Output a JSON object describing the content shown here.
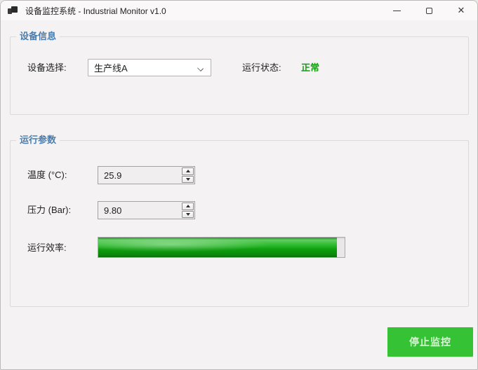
{
  "window": {
    "title": "设备监控系统 - Industrial Monitor v1.0",
    "icons": {
      "app": "app-icon",
      "minimize": "minimize-icon",
      "maximize": "maximize-icon",
      "close": "close-icon",
      "combo_chevron": "chevron-down-icon",
      "spin_up": "arrow-up-icon",
      "spin_down": "arrow-down-icon"
    },
    "close_glyph": "✕"
  },
  "groups": {
    "device_info": {
      "title": "设备信息",
      "device_select_label": "设备选择:",
      "device_selected": "生产线A",
      "status_label": "运行状态:",
      "status_value": "正常"
    },
    "run_params": {
      "title": "运行参数",
      "temperature_label": "温度 (°C):",
      "temperature_value": "25.9",
      "pressure_label": "压力 (Bar):",
      "pressure_value": "9.80",
      "efficiency_label": "运行效率:",
      "efficiency_percent": 97
    }
  },
  "footer": {
    "stop_button_label": "停止监控"
  },
  "colors": {
    "group_title": "#4a7dae",
    "status_ok": "#12a012",
    "progress_green": "#0e9f0e",
    "button_green": "#35c335"
  }
}
